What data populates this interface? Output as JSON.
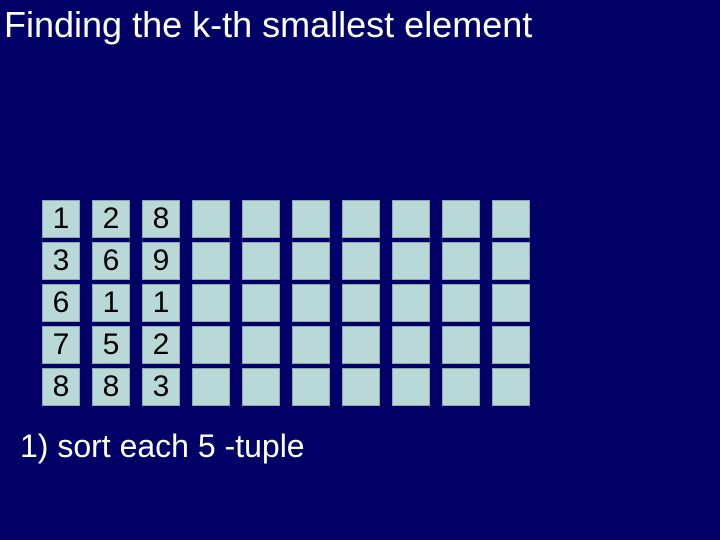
{
  "title": "Finding the k-th smallest element",
  "caption": "1) sort each 5 -tuple",
  "grid": {
    "num_columns": 10,
    "rows_per_column": 5,
    "cell_bg": "#b9d9d9",
    "cell_border": "#8fa8a8",
    "background": "#000066",
    "text_color": "#ffffff",
    "cell_fontsize": 30,
    "title_fontsize": 36,
    "caption_fontsize": 32,
    "columns": [
      [
        "1",
        "3",
        "6",
        "7",
        "8"
      ],
      [
        "2",
        "6",
        "1",
        "5",
        "8"
      ],
      [
        "8",
        "9",
        "1",
        "2",
        "3"
      ],
      [
        "",
        "",
        "",
        "",
        ""
      ],
      [
        "",
        "",
        "",
        "",
        ""
      ],
      [
        "",
        "",
        "",
        "",
        ""
      ],
      [
        "",
        "",
        "",
        "",
        ""
      ],
      [
        "",
        "",
        "",
        "",
        ""
      ],
      [
        "",
        "",
        "",
        "",
        ""
      ],
      [
        "",
        "",
        "",
        "",
        ""
      ]
    ]
  }
}
